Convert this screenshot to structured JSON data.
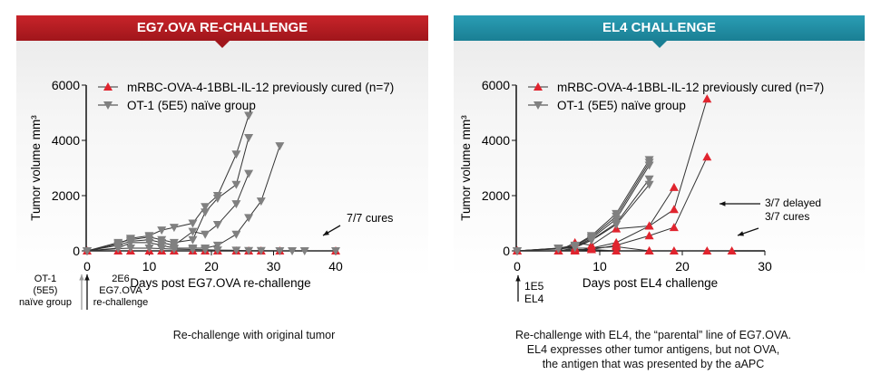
{
  "colors": {
    "red": "#e0242e",
    "gray": "#808080",
    "line": "#333333"
  },
  "chart_data": [
    {
      "type": "line",
      "header": "EG7.OVA RE-CHALLENGE",
      "xlabel": "Days post EG7.OVA re-challenge",
      "ylabel": "Tumor volume mm³",
      "xlim": [
        0,
        40
      ],
      "ylim": [
        0,
        6000
      ],
      "xticks": [
        0,
        10,
        20,
        30,
        40
      ],
      "yticks": [
        0,
        2000,
        4000,
        6000
      ],
      "legend": [
        "mRBC-OVA-4-1BBL-IL-12 previously cured (n=7)",
        "OT-1 (5E5) naïve group"
      ],
      "annotations": {
        "cures": "7/7 cures",
        "arrow1": [
          "OT-1",
          "(5E5)",
          "naïve group"
        ],
        "arrow2": [
          "2E6",
          "EG7.OVA",
          "re-challenge"
        ]
      },
      "caption": [
        "Re-challenge with original tumor"
      ],
      "series": [
        {
          "name": "OT-1 (5E5) naïve group",
          "marker": "down",
          "lines": [
            [
              [
                0,
                0
              ],
              [
                5,
                250
              ],
              [
                7,
                450
              ],
              [
                10,
                550
              ],
              [
                12,
                750
              ],
              [
                14,
                850
              ],
              [
                17,
                1000
              ],
              [
                19,
                1600
              ],
              [
                21,
                2000
              ],
              [
                24,
                3500
              ],
              [
                26,
                4900
              ]
            ],
            [
              [
                0,
                0
              ],
              [
                5,
                300
              ],
              [
                7,
                400
              ],
              [
                10,
                500
              ],
              [
                12,
                400
              ],
              [
                14,
                300
              ],
              [
                17,
                400
              ],
              [
                19,
                1400
              ],
              [
                21,
                1900
              ],
              [
                24,
                2400
              ],
              [
                26,
                4100
              ]
            ],
            [
              [
                0,
                0
              ],
              [
                5,
                200
              ],
              [
                7,
                350
              ],
              [
                10,
                400
              ],
              [
                12,
                300
              ],
              [
                14,
                200
              ],
              [
                17,
                700
              ],
              [
                19,
                600
              ],
              [
                21,
                950
              ],
              [
                24,
                1700
              ],
              [
                26,
                2800
              ]
            ],
            [
              [
                0,
                0
              ],
              [
                5,
                100
              ],
              [
                7,
                300
              ],
              [
                10,
                300
              ],
              [
                12,
                200
              ],
              [
                14,
                100
              ],
              [
                17,
                100
              ],
              [
                19,
                100
              ],
              [
                21,
                200
              ],
              [
                24,
                600
              ],
              [
                26,
                1200
              ],
              [
                28,
                1800
              ],
              [
                31,
                3800
              ]
            ],
            [
              [
                0,
                0
              ],
              [
                5,
                80
              ],
              [
                7,
                100
              ],
              [
                10,
                100
              ],
              [
                12,
                80
              ],
              [
                14,
                60
              ],
              [
                17,
                50
              ],
              [
                19,
                40
              ],
              [
                21,
                30
              ],
              [
                24,
                20
              ],
              [
                26,
                10
              ],
              [
                28,
                10
              ],
              [
                31,
                0
              ],
              [
                33,
                0
              ],
              [
                35,
                0
              ],
              [
                40,
                0
              ]
            ]
          ]
        },
        {
          "name": "mRBC-OVA-4-1BBL-IL-12 previously cured (n=7)",
          "marker": "up",
          "lines": [
            [
              [
                0,
                0
              ],
              [
                5,
                0
              ],
              [
                7,
                0
              ],
              [
                10,
                0
              ],
              [
                12,
                0
              ],
              [
                14,
                0
              ],
              [
                17,
                0
              ],
              [
                19,
                0
              ],
              [
                21,
                0
              ],
              [
                24,
                0
              ],
              [
                26,
                0
              ],
              [
                28,
                0
              ],
              [
                31,
                0
              ],
              [
                40,
                0
              ]
            ]
          ]
        }
      ]
    },
    {
      "type": "line",
      "header": "EL4 CHALLENGE",
      "xlabel": "Days post EL4 challenge",
      "ylabel": "Tumor volume mm³",
      "xlim": [
        0,
        30
      ],
      "ylim": [
        0,
        6000
      ],
      "xticks": [
        0,
        10,
        20,
        30
      ],
      "yticks": [
        0,
        2000,
        4000,
        6000
      ],
      "legend": [
        "mRBC-OVA-4-1BBL-IL-12 previously cured (n=7)",
        "OT-1 (5E5) naïve group"
      ],
      "annotations": {
        "delayed": "3/7 delayed",
        "cures": "3/7 cures",
        "arrow1": [
          "1E5",
          "EL4"
        ]
      },
      "caption": [
        "Re-challenge with EL4, the “parental” line of EG7.OVA.",
        "EL4 expresses other tumor antigens, but not OVA,",
        "the antigen that was presented by the aAPC"
      ],
      "series": [
        {
          "name": "OT-1 (5E5) naïve group",
          "marker": "down",
          "lines": [
            [
              [
                0,
                0
              ],
              [
                5,
                100
              ],
              [
                7,
                200
              ],
              [
                9,
                550
              ],
              [
                12,
                1350
              ],
              [
                16,
                3300
              ]
            ],
            [
              [
                0,
                0
              ],
              [
                5,
                100
              ],
              [
                7,
                180
              ],
              [
                9,
                500
              ],
              [
                12,
                1250
              ],
              [
                16,
                3200
              ]
            ],
            [
              [
                0,
                0
              ],
              [
                5,
                90
              ],
              [
                7,
                150
              ],
              [
                9,
                450
              ],
              [
                12,
                1150
              ],
              [
                16,
                3100
              ]
            ],
            [
              [
                0,
                0
              ],
              [
                5,
                80
              ],
              [
                7,
                130
              ],
              [
                9,
                400
              ],
              [
                12,
                1000
              ],
              [
                16,
                2600
              ]
            ],
            [
              [
                0,
                0
              ],
              [
                5,
                70
              ],
              [
                7,
                120
              ],
              [
                9,
                380
              ],
              [
                12,
                950
              ],
              [
                16,
                2400
              ]
            ]
          ]
        },
        {
          "name": "mRBC-OVA-4-1BBL-IL-12 previously cured (n=7)",
          "marker": "up",
          "lines": [
            [
              [
                0,
                0
              ],
              [
                5,
                0
              ],
              [
                7,
                300
              ],
              [
                9,
                200
              ],
              [
                12,
                800
              ],
              [
                16,
                900
              ],
              [
                19,
                2300
              ]
            ],
            [
              [
                0,
                0
              ],
              [
                5,
                0
              ],
              [
                7,
                100
              ],
              [
                9,
                100
              ],
              [
                12,
                300
              ],
              [
                16,
                900
              ],
              [
                19,
                1500
              ],
              [
                23,
                5500
              ]
            ],
            [
              [
                0,
                0
              ],
              [
                5,
                0
              ],
              [
                7,
                50
              ],
              [
                9,
                50
              ],
              [
                12,
                200
              ],
              [
                16,
                550
              ],
              [
                19,
                850
              ],
              [
                23,
                3400
              ]
            ],
            [
              [
                0,
                0
              ],
              [
                5,
                0
              ],
              [
                7,
                0
              ],
              [
                9,
                100
              ],
              [
                12,
                150
              ],
              [
                16,
                0
              ],
              [
                19,
                0
              ],
              [
                23,
                0
              ],
              [
                26,
                0
              ]
            ],
            [
              [
                0,
                0
              ],
              [
                5,
                0
              ],
              [
                7,
                0
              ],
              [
                9,
                50
              ],
              [
                12,
                0
              ],
              [
                16,
                0
              ]
            ]
          ]
        }
      ]
    }
  ]
}
